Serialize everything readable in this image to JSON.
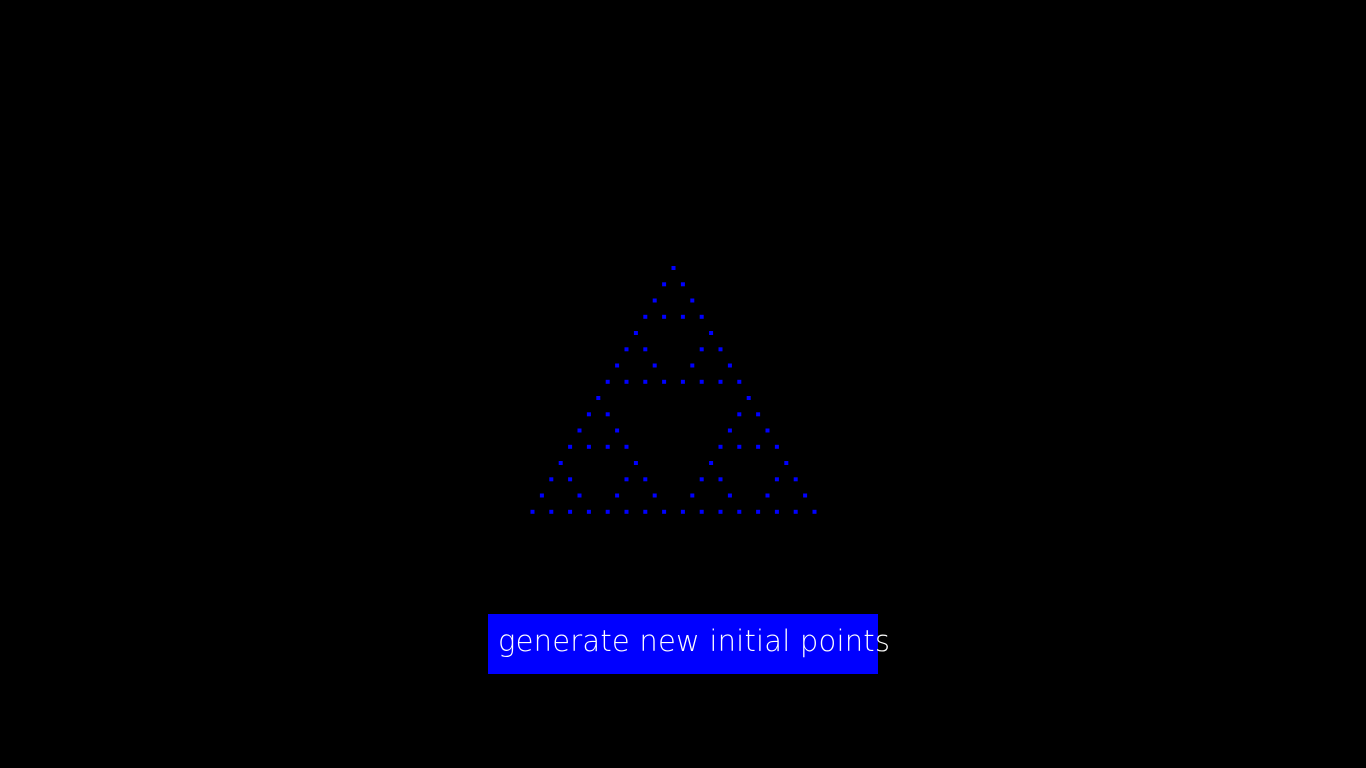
{
  "app": {
    "background_color": "#000000"
  },
  "fractal": {
    "name": "sierpinski-triangle",
    "point_color": "#0000ff",
    "levels": 4
  },
  "controls": {
    "generate_label": "generate new initial points",
    "button_color": "#0000ff",
    "button_text_color": "#ffffff"
  }
}
